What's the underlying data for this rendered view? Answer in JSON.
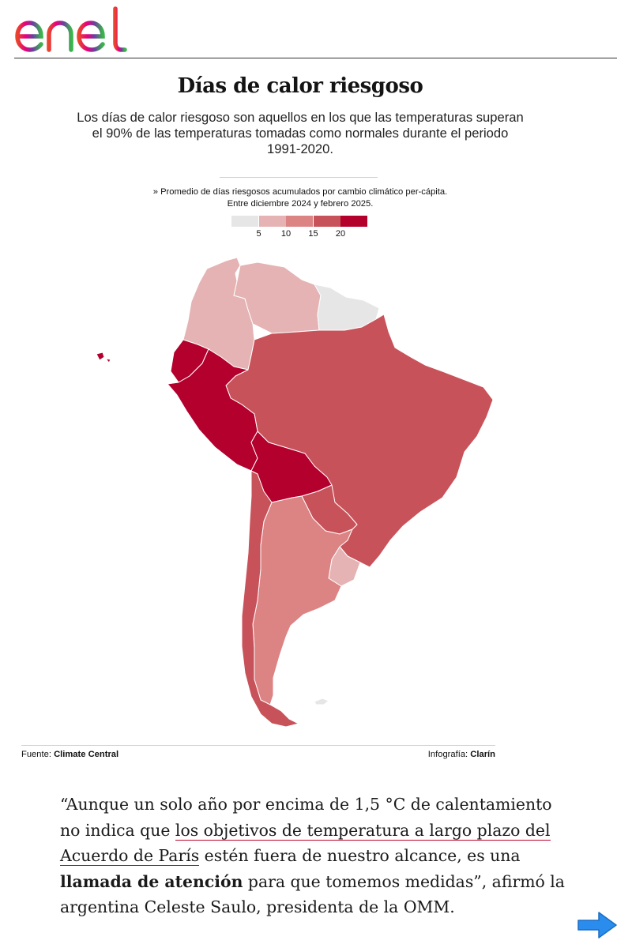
{
  "brand": {
    "logo_text": "enel"
  },
  "article": {
    "title": "Días de calor riesgoso",
    "subtitle": "Los días de calor riesgoso son aquellos en los que las temperaturas superan el 90% de las temperaturas tomadas como normales durante el periodo 1991-2020.",
    "legend": {
      "title_line1": "» Promedio de días riesgosos acumulados por cambio climático per-cápita.",
      "title_line2": "Entre diciembre 2024 y febrero 2025.",
      "ticks": [
        "5",
        "10",
        "15",
        "20"
      ],
      "colors": [
        "#e6e6e6",
        "#e5b3b3",
        "#dc8384",
        "#c8525a",
        "#b3002d"
      ]
    },
    "map": {
      "title": "",
      "countries": [
        {
          "name": "Colombia",
          "class": 2
        },
        {
          "name": "Venezuela",
          "class": 2
        },
        {
          "name": "Guyana",
          "class": 1
        },
        {
          "name": "Suriname",
          "class": 1
        },
        {
          "name": "French Guiana",
          "class": 1
        },
        {
          "name": "Ecuador",
          "class": 5
        },
        {
          "name": "Peru",
          "class": 5
        },
        {
          "name": "Bolivia",
          "class": 5
        },
        {
          "name": "Brazil",
          "class": 4
        },
        {
          "name": "Paraguay",
          "class": 4
        },
        {
          "name": "Uruguay",
          "class": 2
        },
        {
          "name": "Argentina",
          "class": 3
        },
        {
          "name": "Chile",
          "class": 4
        },
        {
          "name": "Galápagos (Ecuador)",
          "class": 5
        },
        {
          "name": "Falkland Islands",
          "class": 1
        }
      ]
    },
    "source_label": "Fuente:",
    "source_name": "Climate Central",
    "credit_label": "Infografía:",
    "credit_name": "Clarín"
  },
  "quote": {
    "p1": "“Aunque un solo año por encima de 1,5 °C de calentamiento no indica que ",
    "link": "los objetivos de temperatura a largo plazo del Acuerdo de París",
    "p2": " estén fuera de nuestro alcance, es una ",
    "bold": "llamada de atención",
    "p3": " para que tomemos medidas”, afirmó la argentina Celeste Saulo, presidenta de la OMM."
  },
  "navigation": {
    "next_icon": "arrow-right-icon",
    "next_color": "#2a8cec"
  }
}
